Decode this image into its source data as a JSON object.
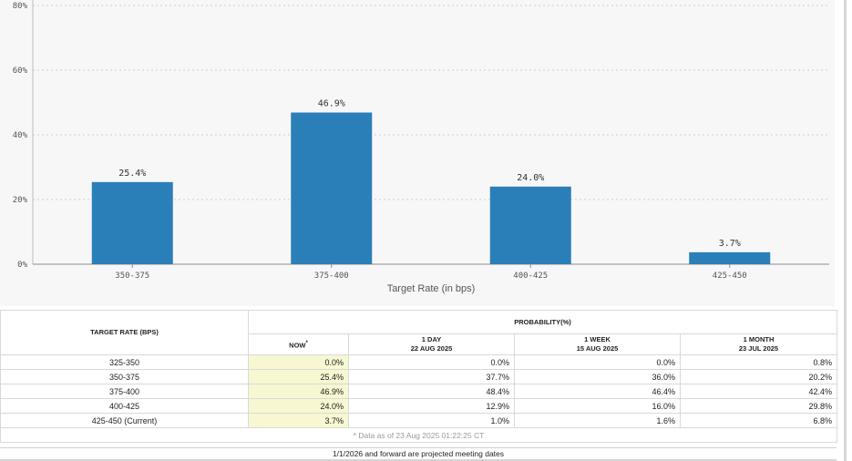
{
  "chart_data": {
    "type": "bar",
    "categories": [
      "350-375",
      "375-400",
      "400-425",
      "425-450"
    ],
    "values": [
      25.4,
      46.9,
      24.0,
      3.7
    ],
    "data_labels": [
      "25.4%",
      "46.9%",
      "24.0%",
      "3.7%"
    ],
    "xlabel": "Target Rate (in bps)",
    "ylabel": "",
    "ylim": [
      0,
      80
    ],
    "yticks": [
      0,
      20,
      40,
      60,
      80
    ],
    "ytick_labels": [
      "0%",
      "20%",
      "40%",
      "60%",
      "80%"
    ],
    "grid": true,
    "bar_color": "#2a7fb8"
  },
  "table": {
    "rate_header": "TARGET RATE (BPS)",
    "probability_header": "PROBABILITY(%)",
    "columns": [
      {
        "line1": "NOW",
        "line2": "",
        "mark": "*"
      },
      {
        "line1": "1 DAY",
        "line2": "22 AUG 2025",
        "mark": ""
      },
      {
        "line1": "1 WEEK",
        "line2": "15 AUG 2025",
        "mark": ""
      },
      {
        "line1": "1 MONTH",
        "line2": "23 JUL 2025",
        "mark": ""
      }
    ],
    "rows": [
      {
        "rate": "325-350",
        "now": "0.0%",
        "day": "0.0%",
        "week": "0.0%",
        "month": "0.8%"
      },
      {
        "rate": "350-375",
        "now": "25.4%",
        "day": "37.7%",
        "week": "36.0%",
        "month": "20.2%"
      },
      {
        "rate": "375-400",
        "now": "46.9%",
        "day": "48.4%",
        "week": "46.4%",
        "month": "42.4%"
      },
      {
        "rate": "400-425",
        "now": "24.0%",
        "day": "12.9%",
        "week": "16.0%",
        "month": "29.8%"
      },
      {
        "rate": "425-450 (Current)",
        "now": "3.7%",
        "day": "1.0%",
        "week": "1.6%",
        "month": "6.8%"
      }
    ],
    "data_note": "* Data as of 23 Aug 2025 01:22:25 CT",
    "highlight_color": "#f7f7d1"
  },
  "footer": {
    "note": "1/1/2026 and forward are projected meeting dates"
  }
}
